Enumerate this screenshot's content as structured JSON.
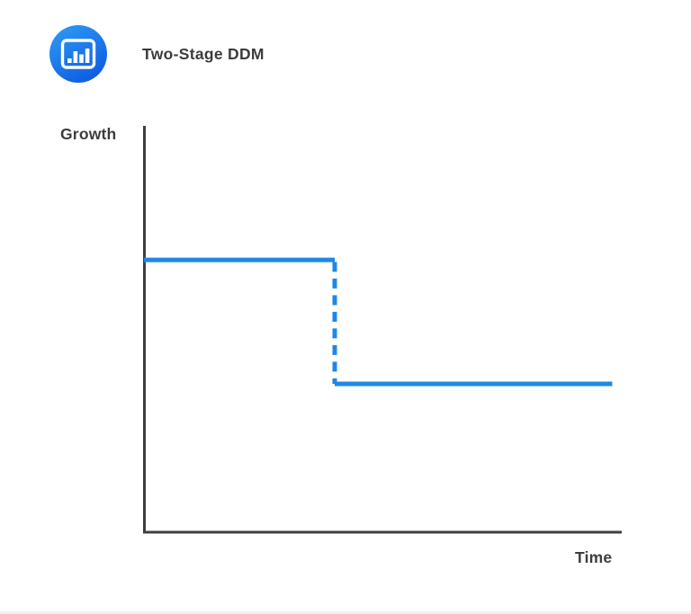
{
  "header": {
    "title": "Two-Stage DDM",
    "icon": "bar-chart-icon"
  },
  "chart_data": {
    "type": "line",
    "title": "Two-Stage DDM",
    "xlabel": "Time",
    "ylabel": "Growth",
    "x_range": [
      0,
      1
    ],
    "y_range": [
      0,
      1
    ],
    "grid": false,
    "legend": "none",
    "tick_labels": "none",
    "series": [
      {
        "name": "stage-1-high-growth",
        "style": "solid",
        "points": [
          [
            0.0,
            0.67
          ],
          [
            0.4,
            0.67
          ]
        ]
      },
      {
        "name": "transition-drop",
        "style": "dashed",
        "points": [
          [
            0.4,
            0.665
          ],
          [
            0.4,
            0.365
          ]
        ]
      },
      {
        "name": "stage-2-stable-growth",
        "style": "solid",
        "points": [
          [
            0.4,
            0.365
          ],
          [
            0.982,
            0.365
          ]
        ]
      }
    ]
  },
  "colors": {
    "line": "#1e88e5",
    "axis": "#3f3f3f",
    "icon_gradient_start": "#2f9ef6",
    "icon_gradient_end": "#0b53de"
  }
}
